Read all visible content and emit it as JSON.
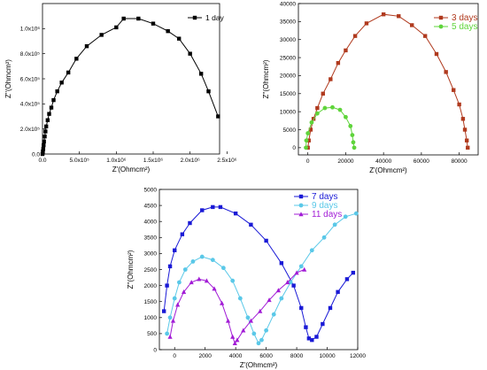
{
  "chart_data": [
    {
      "type": "line",
      "xlabel": "Z'(Ohmcm²)",
      "ylabel": "Z''(Ohmcm²)",
      "xlim": [
        0,
        2400000
      ],
      "ylim": [
        0,
        1200000
      ],
      "xticks": [
        0,
        500000,
        1000000,
        1500000,
        2000000,
        2500000
      ],
      "xtick_labels": [
        "0.0",
        "5.0x10⁵",
        "1.0x10⁶",
        "1.5x10⁶",
        "2.0x10⁶",
        "2.5x10⁶"
      ],
      "yticks": [
        0,
        200000,
        400000,
        600000,
        800000,
        1000000
      ],
      "ytick_labels": [
        "0.0",
        "2.0x10⁵",
        "4.0x10⁵",
        "6.0x10⁵",
        "8.0x10⁵",
        "1.0x10⁶"
      ],
      "legend_position": "top-right",
      "series": [
        {
          "name": "1 day",
          "color": "#000000",
          "marker": "square",
          "points": [
            [
              0,
              0
            ],
            [
              5000,
              20000
            ],
            [
              10000,
              40000
            ],
            [
              15000,
              70000
            ],
            [
              20000,
              100000
            ],
            [
              30000,
              140000
            ],
            [
              40000,
              180000
            ],
            [
              50000,
              220000
            ],
            [
              70000,
              270000
            ],
            [
              90000,
              320000
            ],
            [
              120000,
              370000
            ],
            [
              150000,
              430000
            ],
            [
              200000,
              500000
            ],
            [
              260000,
              570000
            ],
            [
              350000,
              650000
            ],
            [
              460000,
              760000
            ],
            [
              600000,
              860000
            ],
            [
              800000,
              950000
            ],
            [
              1000000,
              1010000
            ],
            [
              1100000,
              1080000
            ],
            [
              1300000,
              1080000
            ],
            [
              1500000,
              1040000
            ],
            [
              1700000,
              980000
            ],
            [
              1850000,
              920000
            ],
            [
              2000000,
              800000
            ],
            [
              2150000,
              640000
            ],
            [
              2250000,
              500000
            ],
            [
              2380000,
              300000
            ]
          ]
        }
      ]
    },
    {
      "type": "line",
      "xlabel": "Z'(Ohmcm²)",
      "ylabel": "Z''(Ohmcm²)",
      "xlim": [
        -5000,
        90000
      ],
      "ylim": [
        -2000,
        40000
      ],
      "xticks": [
        0,
        20000,
        40000,
        60000,
        80000
      ],
      "yticks": [
        0,
        5000,
        10000,
        15000,
        20000,
        25000,
        30000,
        35000,
        40000
      ],
      "legend_position": "top-right",
      "series": [
        {
          "name": "3 days",
          "color": "#b03a1e",
          "marker": "square",
          "points": [
            [
              0,
              0
            ],
            [
              500,
              2000
            ],
            [
              1500,
              5000
            ],
            [
              3000,
              8000
            ],
            [
              5000,
              11000
            ],
            [
              8000,
              15000
            ],
            [
              12000,
              19000
            ],
            [
              16000,
              23500
            ],
            [
              20000,
              27000
            ],
            [
              25000,
              31000
            ],
            [
              31000,
              34500
            ],
            [
              40000,
              37000
            ],
            [
              48000,
              36500
            ],
            [
              55000,
              34000
            ],
            [
              62000,
              31000
            ],
            [
              68000,
              26000
            ],
            [
              73000,
              21000
            ],
            [
              77000,
              16000
            ],
            [
              80000,
              12000
            ],
            [
              82000,
              8000
            ],
            [
              83000,
              5000
            ],
            [
              84000,
              2000
            ],
            [
              84500,
              0
            ]
          ]
        },
        {
          "name": "5 days",
          "color": "#5fd43b",
          "marker": "circle",
          "points": [
            [
              -1000,
              0
            ],
            [
              -800,
              2000
            ],
            [
              0,
              4000
            ],
            [
              2000,
              7000
            ],
            [
              5000,
              9500
            ],
            [
              9000,
              11000
            ],
            [
              13000,
              11200
            ],
            [
              17000,
              10500
            ],
            [
              20000,
              8500
            ],
            [
              22500,
              6000
            ],
            [
              23500,
              3500
            ],
            [
              24000,
              1500
            ],
            [
              24500,
              0
            ]
          ]
        }
      ]
    },
    {
      "type": "line",
      "xlabel": "Z'(Ohmcm²)",
      "ylabel": "Z''(Ohmcm²)",
      "xlim": [
        -1000,
        12000
      ],
      "ylim": [
        0,
        5000
      ],
      "xticks": [
        0,
        2000,
        4000,
        6000,
        8000,
        10000,
        12000
      ],
      "yticks": [
        0,
        500,
        1000,
        1500,
        2000,
        2500,
        3000,
        3500,
        4000,
        4500,
        5000
      ],
      "legend_position": "top-right",
      "series": [
        {
          "name": "7 days",
          "color": "#1a1ad6",
          "marker": "square",
          "points": [
            [
              -700,
              1200
            ],
            [
              -500,
              2000
            ],
            [
              -300,
              2600
            ],
            [
              0,
              3100
            ],
            [
              500,
              3600
            ],
            [
              1000,
              3950
            ],
            [
              1800,
              4350
            ],
            [
              2500,
              4450
            ],
            [
              3000,
              4450
            ],
            [
              4000,
              4250
            ],
            [
              5000,
              3900
            ],
            [
              6000,
              3400
            ],
            [
              7000,
              2700
            ],
            [
              7800,
              2000
            ],
            [
              8300,
              1300
            ],
            [
              8600,
              700
            ],
            [
              8800,
              350
            ],
            [
              9000,
              300
            ],
            [
              9300,
              400
            ],
            [
              9700,
              800
            ],
            [
              10200,
              1300
            ],
            [
              10700,
              1800
            ],
            [
              11300,
              2200
            ],
            [
              11700,
              2400
            ]
          ]
        },
        {
          "name": "9 days",
          "color": "#5ac8e8",
          "marker": "circle",
          "points": [
            [
              -500,
              500
            ],
            [
              -300,
              1000
            ],
            [
              0,
              1600
            ],
            [
              300,
              2100
            ],
            [
              700,
              2500
            ],
            [
              1200,
              2750
            ],
            [
              1800,
              2900
            ],
            [
              2500,
              2800
            ],
            [
              3200,
              2550
            ],
            [
              3800,
              2150
            ],
            [
              4300,
              1600
            ],
            [
              4800,
              1000
            ],
            [
              5200,
              500
            ],
            [
              5500,
              200
            ],
            [
              5700,
              300
            ],
            [
              6000,
              600
            ],
            [
              6500,
              1100
            ],
            [
              7000,
              1600
            ],
            [
              7600,
              2100
            ],
            [
              8300,
              2600
            ],
            [
              9000,
              3100
            ],
            [
              9800,
              3500
            ],
            [
              10500,
              3900
            ],
            [
              11200,
              4150
            ],
            [
              11900,
              4250
            ]
          ]
        },
        {
          "name": "11 days",
          "color": "#a21cd6",
          "marker": "triangle",
          "points": [
            [
              -300,
              400
            ],
            [
              -100,
              900
            ],
            [
              200,
              1400
            ],
            [
              600,
              1800
            ],
            [
              1100,
              2100
            ],
            [
              1600,
              2200
            ],
            [
              2100,
              2150
            ],
            [
              2600,
              1900
            ],
            [
              3100,
              1450
            ],
            [
              3500,
              900
            ],
            [
              3800,
              400
            ],
            [
              3950,
              200
            ],
            [
              4100,
              300
            ],
            [
              4500,
              600
            ],
            [
              5000,
              900
            ],
            [
              5600,
              1200
            ],
            [
              6200,
              1550
            ],
            [
              6800,
              1850
            ],
            [
              7400,
              2100
            ],
            [
              8000,
              2400
            ],
            [
              8500,
              2500
            ]
          ]
        }
      ]
    }
  ]
}
